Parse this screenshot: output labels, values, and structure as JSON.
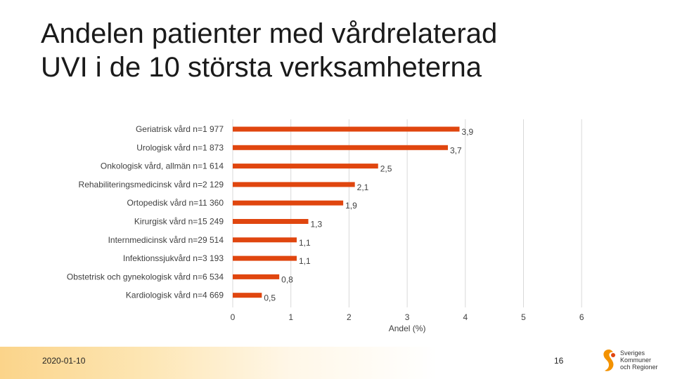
{
  "title": {
    "line1": "Andelen patienter med vårdrelaterad",
    "line2": "UVI i de 10 största verksamheterna"
  },
  "footer": {
    "date": "2020-01-10",
    "page_number": "16",
    "logo_lines": [
      "Sveriges",
      "Kommuner",
      "och Regioner"
    ]
  },
  "colors": {
    "bar": "#e0460f",
    "grid": "#d9d9d9",
    "text": "#404040"
  },
  "chart_data": {
    "type": "bar",
    "orientation": "horizontal",
    "title": "",
    "xlabel": "Andel (%)",
    "ylabel": "",
    "xlim": [
      0,
      6
    ],
    "xticks": [
      "0",
      "1",
      "2",
      "3",
      "4",
      "5",
      "6"
    ],
    "categories": [
      "Geriatrisk vård n=1 977",
      "Urologisk vård n=1 873",
      "Onkologisk vård, allmän n=1 614",
      "Rehabiliteringsmedicinsk vård n=2 129",
      "Ortopedisk vård n=11 360",
      "Kirurgisk vård n=15 249",
      "Internmedicinsk vård n=29 514",
      "Infektionssjukvård n=3 193",
      "Obstetrisk och gynekologisk vård n=6 534",
      "Kardiologisk vård n=4 669"
    ],
    "values": [
      3.9,
      3.7,
      2.5,
      2.1,
      1.9,
      1.3,
      1.1,
      1.1,
      0.8,
      0.5
    ],
    "value_labels": [
      "3,9",
      "3,7",
      "2,5",
      "2,1",
      "1,9",
      "1,3",
      "1,1",
      "1,1",
      "0,8",
      "0,5"
    ],
    "grid": true,
    "legend": "none"
  }
}
